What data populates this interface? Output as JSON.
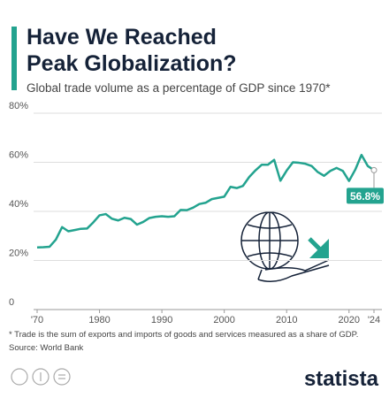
{
  "chart_data": {
    "type": "line",
    "title": [
      "Have We Reached",
      "Peak Globalization?"
    ],
    "subtitle": "Global trade volume as a percentage of GDP since 1970*",
    "x": [
      1970,
      1971,
      1972,
      1973,
      1974,
      1975,
      1976,
      1977,
      1978,
      1979,
      1980,
      1981,
      1982,
      1983,
      1984,
      1985,
      1986,
      1987,
      1988,
      1989,
      1990,
      1991,
      1992,
      1993,
      1994,
      1995,
      1996,
      1997,
      1998,
      1999,
      2000,
      2001,
      2002,
      2003,
      2004,
      2005,
      2006,
      2007,
      2008,
      2009,
      2010,
      2011,
      2012,
      2013,
      2014,
      2015,
      2016,
      2017,
      2018,
      2019,
      2020,
      2021,
      2022,
      2023,
      2024
    ],
    "series": [
      {
        "name": "Trade (% of GDP)",
        "color": "#23a38f",
        "values": [
          25.3,
          25.4,
          25.6,
          28.5,
          33.6,
          31.9,
          32.4,
          32.9,
          33.0,
          35.5,
          38.4,
          38.9,
          37.0,
          36.3,
          37.4,
          36.9,
          34.6,
          35.7,
          37.3,
          37.8,
          38.0,
          37.8,
          38.0,
          40.6,
          40.5,
          41.5,
          43.0,
          43.5,
          45.0,
          45.5,
          46.0,
          50.0,
          49.5,
          50.4,
          54.0,
          56.7,
          59.0,
          59.0,
          61.0,
          52.5,
          56.6,
          60.0,
          59.8,
          59.4,
          58.5,
          56.0,
          54.5,
          56.5,
          57.7,
          56.5,
          52.4,
          57.0,
          63.0,
          58.5,
          56.8
        ],
        "value_labels": [
          null,
          null,
          null,
          null,
          null,
          null,
          null,
          null,
          null,
          null,
          null,
          null,
          null,
          null,
          null,
          null,
          null,
          null,
          null,
          null,
          null,
          null,
          null,
          null,
          null,
          null,
          null,
          null,
          null,
          null,
          null,
          null,
          null,
          null,
          null,
          null,
          null,
          null,
          null,
          null,
          null,
          null,
          null,
          null,
          null,
          null,
          null,
          null,
          null,
          null,
          null,
          null,
          null,
          null,
          "56.8%"
        ]
      }
    ],
    "xlim": [
      1970,
      2024
    ],
    "xticks": [
      {
        "value": 1970,
        "label": "'70"
      },
      1980,
      1990,
      2000,
      2010,
      2020,
      {
        "value": 2024,
        "label": "'24"
      }
    ],
    "ylim": [
      0,
      80
    ],
    "yticks": [
      0,
      {
        "value": 20,
        "label": "20%"
      },
      {
        "value": 40,
        "label": "40%"
      },
      {
        "value": 60,
        "label": "60%"
      },
      {
        "value": 80,
        "label": "80%"
      }
    ],
    "grid": true,
    "footnote": "* Trade is the sum of exports and imports of goods and services measured as a share of GDP.",
    "source": "Source: World Bank",
    "brand": "statista"
  }
}
